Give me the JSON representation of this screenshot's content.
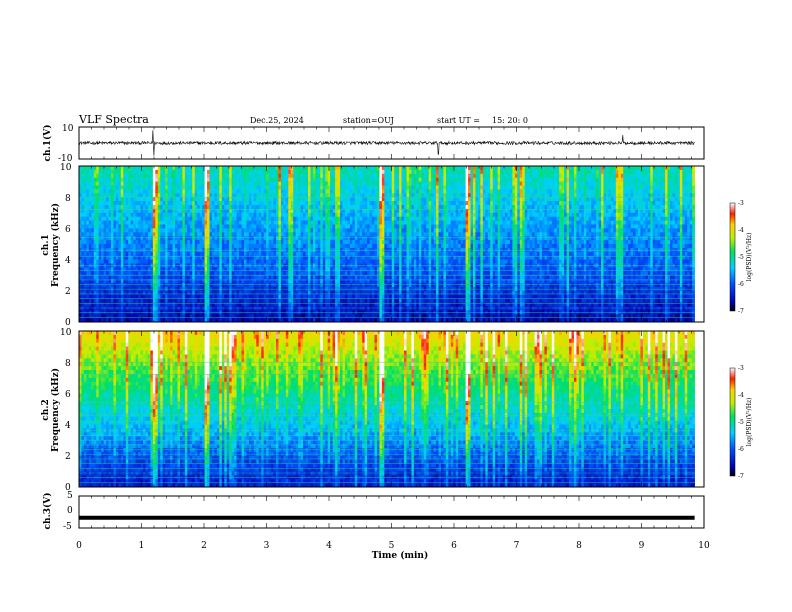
{
  "header": {
    "title": "VLF Spectra",
    "date": "Dec.25, 2024",
    "station": "station=OUJ",
    "start_label": "start  UT  =",
    "start_time": "15: 20: 0"
  },
  "chart_data": [
    {
      "type": "line",
      "name": "ch1-waveform",
      "ylabel": "ch.1(V)",
      "ylim": [
        -10,
        10
      ],
      "y_ticks": [
        "10",
        "-10"
      ],
      "baseline": 0,
      "noise_amplitude": 2,
      "spikes": [
        {
          "t": 1.18,
          "y": 8
        },
        {
          "t": 1.2,
          "y": -8
        },
        {
          "t": 5.75,
          "y": -7
        },
        {
          "t": 8.7,
          "y": 5
        }
      ]
    },
    {
      "type": "heatmap",
      "name": "ch1-spectrogram",
      "ylabel_line1": "ch.1",
      "ylabel_line2": "Frequency (kHz)",
      "ylim": [
        0,
        10
      ],
      "y_ticks": [
        "0",
        "2",
        "4",
        "6",
        "8",
        "10"
      ],
      "colorbar": {
        "label": "log(PSD)(V²/Hz)",
        "ticks": [
          "-3",
          "-4",
          "-5",
          "-6",
          "-7"
        ],
        "range": [
          -7,
          -3
        ]
      },
      "strong_sferic_times_min": [
        1.17,
        1.2,
        6.2,
        2.0,
        4.8
      ]
    },
    {
      "type": "heatmap",
      "name": "ch2-spectrogram",
      "ylabel_line1": "ch.2",
      "ylabel_line2": "Frequency (kHz)",
      "ylim": [
        0,
        10
      ],
      "y_ticks": [
        "0",
        "2",
        "4",
        "6",
        "8",
        "10"
      ],
      "colorbar": {
        "label": "log(PSD)(V²/Hz)",
        "ticks": [
          "-3",
          "-4",
          "-5",
          "-6",
          "-7"
        ],
        "range": [
          -7,
          -3
        ]
      },
      "strong_sferic_times_min": [
        1.17,
        1.2,
        6.2,
        2.0,
        4.8
      ]
    },
    {
      "type": "line",
      "name": "ch3-waveform",
      "ylabel": "ch.3(V)",
      "ylim": [
        -5,
        5
      ],
      "y_ticks": [
        "5",
        "0",
        "-5"
      ],
      "baseline": -1.8
    }
  ],
  "x_axis": {
    "label": "Time  (min)",
    "range": [
      0,
      10
    ],
    "data_end": 9.85,
    "ticks": [
      "0",
      "1",
      "2",
      "3",
      "4",
      "5",
      "6",
      "7",
      "8",
      "9",
      "10"
    ]
  }
}
